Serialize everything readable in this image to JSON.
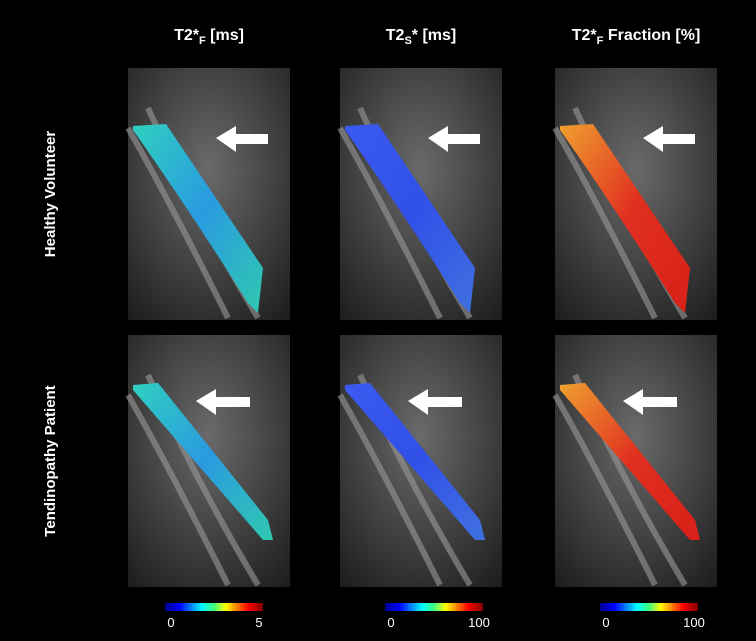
{
  "columns": [
    {
      "main": "T2*",
      "sub": "F",
      "rest": " [ms]",
      "colorbar": {
        "min": "0",
        "max": "5"
      }
    },
    {
      "main": "T2",
      "sub": "S",
      "rest": "* [ms]",
      "colorbar": {
        "min": "0",
        "max": "100"
      }
    },
    {
      "main": "T2*",
      "sub": "F",
      "rest": " Fraction [%]",
      "colorbar": {
        "min": "0",
        "max": "100"
      }
    }
  ],
  "rows": [
    "Healthy Volunteer",
    "Tendinopathy Patient"
  ]
}
